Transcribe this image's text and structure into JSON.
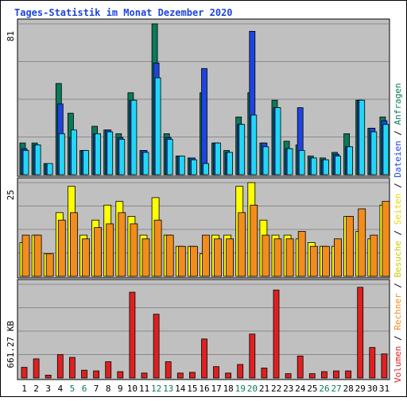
{
  "chart_data": {
    "type": "bar",
    "title": "Tages-Statistik im Monat Dezember 2020",
    "categories": [
      "1",
      "2",
      "3",
      "4",
      "5",
      "6",
      "7",
      "8",
      "9",
      "10",
      "11",
      "12",
      "13",
      "14",
      "15",
      "16",
      "17",
      "18",
      "19",
      "20",
      "21",
      "22",
      "23",
      "24",
      "25",
      "26",
      "27",
      "28",
      "29",
      "30",
      "31"
    ],
    "weekend_days": [
      "5",
      "6",
      "12",
      "13",
      "19",
      "20",
      "26",
      "27"
    ],
    "panels": [
      {
        "id": "top",
        "ymax": 81,
        "ymax_label": "81",
        "series": [
          {
            "name": "Anfragen",
            "color": "#0a7a5a",
            "values": [
              17,
              17,
              6,
              49,
              33,
              13,
              26,
              24,
              22,
              44,
              13,
              81,
              22,
              10,
              9,
              44,
              17,
              13,
              31,
              44,
              17,
              40,
              18,
              16,
              10,
              9,
              12,
              22,
              40,
              25,
              31
            ]
          },
          {
            "name": "Dateien",
            "color": "#1e44e0",
            "values": [
              14,
              16,
              6,
              38,
              20,
              13,
              22,
              24,
              20,
              40,
              13,
              60,
              20,
              10,
              9,
              57,
              17,
              12,
              27,
              77,
              17,
              36,
              14,
              36,
              9,
              8,
              11,
              15,
              40,
              25,
              29
            ]
          },
          {
            "name": "Anfragen/Dateien (cyan)",
            "color": "#22d7f5",
            "values": [
              13,
              16,
              6,
              22,
              24,
              13,
              22,
              23,
              19,
              40,
              12,
              52,
              19,
              10,
              8,
              6,
              17,
              12,
              27,
              32,
              15,
              36,
              14,
              13,
              9,
              8,
              10,
              15,
              40,
              23,
              27
            ]
          }
        ]
      },
      {
        "id": "middle",
        "ymax": 25,
        "ymax_label": "25",
        "series": [
          {
            "name": "Besuche",
            "color": "#ffff00",
            "values": [
              9,
              11,
              6,
              17,
              24,
              11,
              15,
              19,
              20,
              16,
              11,
              21,
              11,
              8,
              8,
              6,
              11,
              11,
              24,
              25,
              15,
              11,
              11,
              10,
              9,
              8,
              8,
              16,
              12,
              10,
              19
            ]
          },
          {
            "name": "Seiten",
            "color": "#f28c1a",
            "values": [
              11,
              11,
              6,
              15,
              17,
              10,
              13,
              14,
              17,
              14,
              10,
              15,
              11,
              8,
              8,
              11,
              10,
              10,
              17,
              19,
              11,
              10,
              10,
              12,
              8,
              8,
              10,
              16,
              18,
              11,
              20
            ]
          }
        ]
      },
      {
        "id": "bottom",
        "ymax": 661.27,
        "ymax_label": "661.27 KB",
        "series": [
          {
            "name": "Volumen",
            "color": "#e02020",
            "values": [
              75,
              135,
              20,
              165,
              145,
              55,
              50,
              115,
              45,
              605,
              35,
              450,
              115,
              35,
              40,
              275,
              80,
              35,
              95,
              310,
              70,
              621,
              30,
              155,
              30,
              45,
              50,
              50,
              640,
              215,
              170
            ]
          }
        ]
      }
    ],
    "right_label_parts": [
      {
        "text": "Volumen",
        "color": "#e02020"
      },
      {
        "text": " / ",
        "color": "#000000"
      },
      {
        "text": "Rechner",
        "color": "#f28c1a"
      },
      {
        "text": " / ",
        "color": "#000000"
      },
      {
        "text": "Besuche",
        "color": "#cccc00"
      },
      {
        "text": " / ",
        "color": "#000000"
      },
      {
        "text": "Seiten",
        "color": "#e8d800"
      },
      {
        "text": " / ",
        "color": "#000000"
      },
      {
        "text": "Dateien",
        "color": "#1e44e0"
      },
      {
        "text": " / ",
        "color": "#000000"
      },
      {
        "text": "Anfragen",
        "color": "#0a7a5a"
      }
    ],
    "colors": {
      "title": "#1e44e0",
      "panel_bg": "#c0c0c0",
      "grid": "#8a8a8a",
      "weekday_label": "#000000",
      "weekend_label": "#0a7a5a"
    }
  }
}
